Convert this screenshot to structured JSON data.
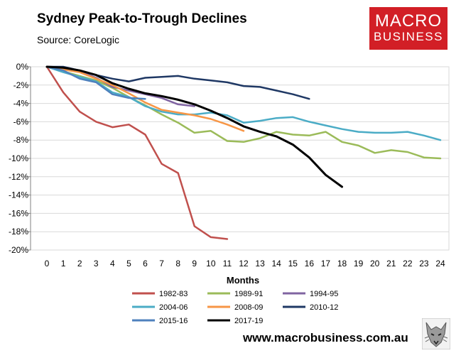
{
  "header": {
    "title": "Sydney Peak-to-Trough Declines",
    "subtitle": "Source: CoreLogic"
  },
  "logo": {
    "line1": "MACRO",
    "line2": "BUSINESS",
    "color": "#d21f26"
  },
  "footer": {
    "url": "www.macrobusiness.com.au",
    "mascot": "wolf-logo-icon"
  },
  "chart_data": {
    "type": "line",
    "xlabel": "Months",
    "ylabel": "",
    "xlim": [
      0,
      24
    ],
    "ylim": [
      -20,
      0
    ],
    "x_ticks": [
      0,
      1,
      2,
      3,
      4,
      5,
      6,
      7,
      8,
      9,
      10,
      11,
      12,
      13,
      14,
      15,
      16,
      17,
      18,
      19,
      20,
      21,
      22,
      23,
      24
    ],
    "y_ticks": [
      0,
      -2,
      -4,
      -6,
      -8,
      -10,
      -12,
      -14,
      -16,
      -18,
      -20
    ],
    "y_tick_labels": [
      "0%",
      "-2%",
      "-4%",
      "-6%",
      "-8%",
      "-10%",
      "-12%",
      "-14%",
      "-16%",
      "-18%",
      "-20%"
    ],
    "grid": "horizontal",
    "legend": "bottom",
    "series": [
      {
        "name": "1982-83",
        "color": "#c0504d",
        "x": [
          0,
          1,
          2,
          3,
          4,
          5,
          6,
          7,
          8,
          9,
          10,
          11
        ],
        "values": [
          0,
          -2.8,
          -4.9,
          -6.0,
          -6.6,
          -6.3,
          -7.4,
          -10.6,
          -11.6,
          -17.4,
          -18.6,
          -18.8
        ]
      },
      {
        "name": "1989-91",
        "color": "#9bbb59",
        "x": [
          0,
          1,
          2,
          3,
          4,
          5,
          6,
          7,
          8,
          9,
          10,
          11,
          12,
          13,
          14,
          15,
          16,
          17,
          18,
          19,
          20,
          21,
          22,
          23,
          24
        ],
        "values": [
          0,
          -0.5,
          -1.0,
          -1.5,
          -2.3,
          -3.3,
          -4.2,
          -5.2,
          -6.1,
          -7.2,
          -7.0,
          -8.1,
          -8.2,
          -7.8,
          -7.1,
          -7.4,
          -7.5,
          -7.1,
          -8.2,
          -8.6,
          -9.4,
          -9.1,
          -9.3,
          -9.9,
          -10.0
        ]
      },
      {
        "name": "1994-95",
        "color": "#8064a2",
        "x": [
          0,
          1,
          2,
          3,
          4,
          5,
          6,
          7,
          8,
          9
        ],
        "values": [
          0,
          -0.2,
          -0.5,
          -1.2,
          -2.2,
          -2.6,
          -3.0,
          -3.4,
          -4.1,
          -4.3
        ]
      },
      {
        "name": "2004-06",
        "color": "#4bacc6",
        "x": [
          0,
          1,
          2,
          3,
          4,
          5,
          6,
          7,
          8,
          9,
          10,
          11,
          12,
          13,
          14,
          15,
          16,
          17,
          18,
          19,
          20,
          21,
          22,
          23,
          24
        ],
        "values": [
          0,
          -0.6,
          -1.1,
          -1.6,
          -2.8,
          -3.3,
          -4.3,
          -4.9,
          -5.2,
          -5.2,
          -5.0,
          -5.3,
          -6.1,
          -5.9,
          -5.6,
          -5.5,
          -6.0,
          -6.4,
          -6.8,
          -7.1,
          -7.2,
          -7.2,
          -7.1,
          -7.5,
          -8.0
        ]
      },
      {
        "name": "2008-09",
        "color": "#f79646",
        "x": [
          0,
          1,
          2,
          3,
          4,
          5,
          6,
          7,
          8,
          9,
          10,
          11,
          12
        ],
        "values": [
          0,
          -0.3,
          -0.6,
          -1.3,
          -2.0,
          -2.9,
          -3.9,
          -4.7,
          -5.0,
          -5.3,
          -5.7,
          -6.3,
          -7.0
        ]
      },
      {
        "name": "2010-12",
        "color": "#1f3864",
        "x": [
          0,
          1,
          2,
          3,
          4,
          5,
          6,
          7,
          8,
          9,
          10,
          11,
          12,
          13,
          14,
          15,
          16
        ],
        "values": [
          0,
          0,
          -0.4,
          -0.9,
          -1.3,
          -1.6,
          -1.2,
          -1.1,
          -1.0,
          -1.3,
          -1.5,
          -1.7,
          -2.1,
          -2.2,
          -2.6,
          -3.0,
          -3.5
        ]
      },
      {
        "name": "2015-16",
        "color": "#4f81bd",
        "x": [
          0,
          1,
          2,
          3,
          4,
          5,
          6
        ],
        "values": [
          0,
          -0.4,
          -1.3,
          -1.7,
          -3.0,
          -3.4,
          -3.5
        ]
      },
      {
        "name": "2017-19",
        "color": "#000000",
        "x": [
          0,
          1,
          2,
          3,
          4,
          5,
          6,
          7,
          8,
          9,
          10,
          11,
          12,
          13,
          14,
          15,
          16,
          17,
          18
        ],
        "values": [
          0,
          -0.1,
          -0.4,
          -0.9,
          -1.8,
          -2.4,
          -2.9,
          -3.2,
          -3.6,
          -4.1,
          -4.8,
          -5.6,
          -6.5,
          -7.1,
          -7.6,
          -8.5,
          -9.9,
          -11.8,
          -13.1
        ]
      }
    ]
  }
}
